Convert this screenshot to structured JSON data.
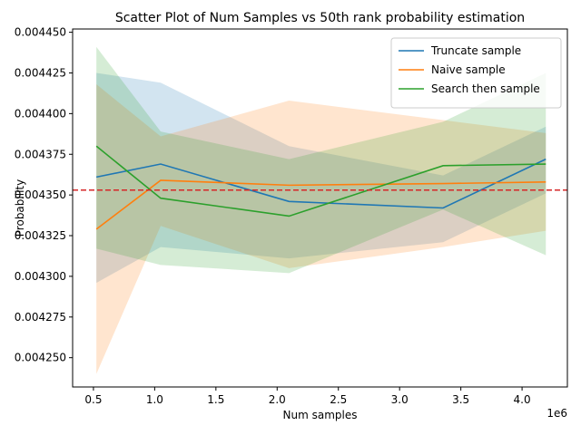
{
  "chart_data": {
    "type": "line",
    "title": "Scatter Plot of Num Samples vs 50th rank probability estimation",
    "xlabel": "Num samples",
    "ylabel": "Probability",
    "x_offset_label": "1e6",
    "xlim": [
      0.33,
      4.37
    ],
    "ylim": [
      0.004232,
      0.004452
    ],
    "x_ticks": [
      0.5,
      1.0,
      1.5,
      2.0,
      2.5,
      3.0,
      3.5,
      4.0
    ],
    "x_tick_labels": [
      "0.5",
      "1.0",
      "1.5",
      "2.0",
      "2.5",
      "3.0",
      "3.5",
      "4.0"
    ],
    "y_ticks": [
      0.00425,
      0.004275,
      0.0043,
      0.004325,
      0.00435,
      0.004375,
      0.0044,
      0.004425,
      0.00445
    ],
    "y_tick_labels": [
      "0.004250",
      "0.004275",
      "0.004300",
      "0.004325",
      "0.004350",
      "0.004375",
      "0.004400",
      "0.004425",
      "0.004450"
    ],
    "x": [
      0.524,
      1.049,
      2.097,
      3.355,
      4.194
    ],
    "series": [
      {
        "name": "Truncate sample",
        "color": "#1f77b4",
        "values": [
          0.004361,
          0.004369,
          0.004346,
          0.004342,
          0.004372
        ],
        "lower": [
          0.004296,
          0.004318,
          0.004311,
          0.004321,
          0.004351
        ],
        "upper": [
          0.004425,
          0.004419,
          0.00438,
          0.004362,
          0.004392
        ]
      },
      {
        "name": "Naive sample",
        "color": "#ff7f0e",
        "values": [
          0.004329,
          0.004359,
          0.004356,
          0.004357,
          0.004358
        ],
        "lower": [
          0.00424,
          0.004331,
          0.004305,
          0.004318,
          0.004328
        ],
        "upper": [
          0.004418,
          0.004386,
          0.004408,
          0.004396,
          0.004388
        ]
      },
      {
        "name": "Search then sample",
        "color": "#2ca02c",
        "values": [
          0.00438,
          0.004348,
          0.004337,
          0.004368,
          0.004369
        ],
        "lower": [
          0.004317,
          0.004307,
          0.004302,
          0.004341,
          0.004313
        ],
        "upper": [
          0.004441,
          0.004389,
          0.004372,
          0.004395,
          0.004425
        ]
      }
    ],
    "reference_line": {
      "value": 0.004353,
      "color": "#d62728",
      "style": "dashed"
    },
    "legend_position": "top-right",
    "grid": false
  }
}
